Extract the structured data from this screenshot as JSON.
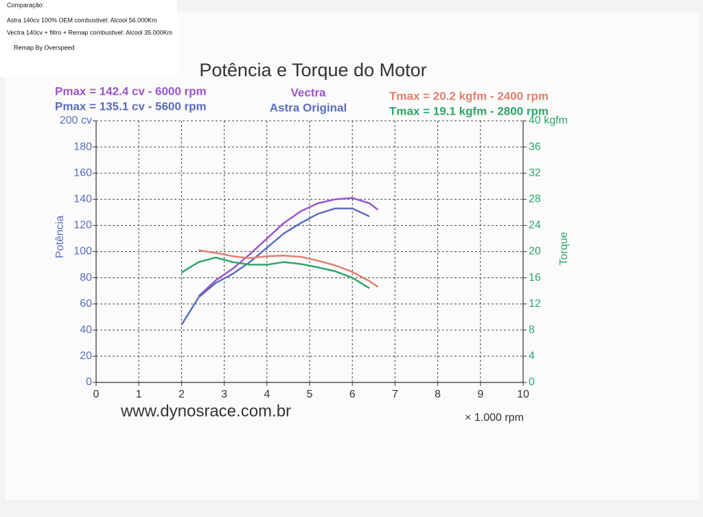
{
  "chart_data": {
    "type": "line",
    "title": "Potência e Torque do Motor",
    "xlabel": "× 1.000 rpm",
    "ylabel": "Potência",
    "y2label": "Torque",
    "source": "www.dynosrace.com.br",
    "notes": [
      "Comparação:",
      "Astra 140cv  100% OEM  combustivel:  Alcool  56.000Km",
      "Vectra 140cv + filtro + Remap  combustivel: Alcool 35.000Km",
      "Remap By Overspeed"
    ],
    "annotations": [
      {
        "text": "Pmax = 142.4 cv - 6000 rpm",
        "color": "#9a55c8"
      },
      {
        "text": "Pmax = 135.1 cv - 5600 rpm",
        "color": "#5a6cc0"
      },
      {
        "text": "Tmax = 20.2 kgfm - 2400 rpm",
        "color": "#e0806e"
      },
      {
        "text": "Tmax = 19.1 kgfm - 2800 rpm",
        "color": "#2fa56a"
      }
    ],
    "xlim": [
      0,
      10
    ],
    "xticks": [
      0,
      1,
      2,
      3,
      4,
      5,
      6,
      7,
      8,
      9,
      10
    ],
    "ylim": [
      0,
      200
    ],
    "yticks": [
      0,
      20,
      40,
      60,
      80,
      100,
      120,
      140,
      160,
      180,
      {
        "value": 200,
        "label": "200 cv"
      }
    ],
    "y2lim": [
      0,
      40
    ],
    "y2ticks": [
      0,
      4,
      8,
      12,
      16,
      20,
      24,
      28,
      32,
      36,
      {
        "value": 40,
        "label": "40 kgfm"
      }
    ],
    "grid": true,
    "series": [
      {
        "name": "Vectra",
        "color": "#9a55c8",
        "x": [
          2.4,
          2.8,
          3.2,
          3.6,
          4.0,
          4.4,
          4.8,
          5.2,
          5.6,
          6.0,
          6.4,
          6.6
        ],
        "values": [
          66,
          78,
          87,
          98,
          110,
          122,
          131,
          137,
          140,
          141,
          137,
          132
        ]
      },
      {
        "name": "Astra Original",
        "color": "#5a6cc0",
        "x": [
          2.0,
          2.4,
          2.8,
          3.2,
          3.6,
          4.0,
          4.4,
          4.8,
          5.2,
          5.6,
          6.0,
          6.4
        ],
        "values": [
          44,
          65,
          76,
          83,
          92,
          103,
          114,
          122,
          129,
          133,
          133,
          127
        ]
      },
      {
        "color": "#e0806e",
        "axis": "y2",
        "x": [
          2.4,
          2.8,
          3.2,
          3.6,
          4.0,
          4.4,
          4.8,
          5.2,
          5.6,
          6.0,
          6.4,
          6.6
        ],
        "values": [
          20.2,
          19.8,
          19.3,
          19.0,
          19.3,
          19.4,
          19.2,
          18.6,
          17.9,
          16.9,
          15.5,
          14.6
        ]
      },
      {
        "color": "#2fa56a",
        "axis": "y2",
        "x": [
          2.0,
          2.4,
          2.8,
          3.2,
          3.6,
          4.0,
          4.4,
          4.8,
          5.2,
          5.6,
          6.0,
          6.4
        ],
        "values": [
          16.8,
          18.4,
          19.1,
          18.4,
          18.0,
          18.0,
          18.4,
          18.1,
          17.6,
          17.0,
          16.0,
          14.4
        ]
      }
    ]
  }
}
